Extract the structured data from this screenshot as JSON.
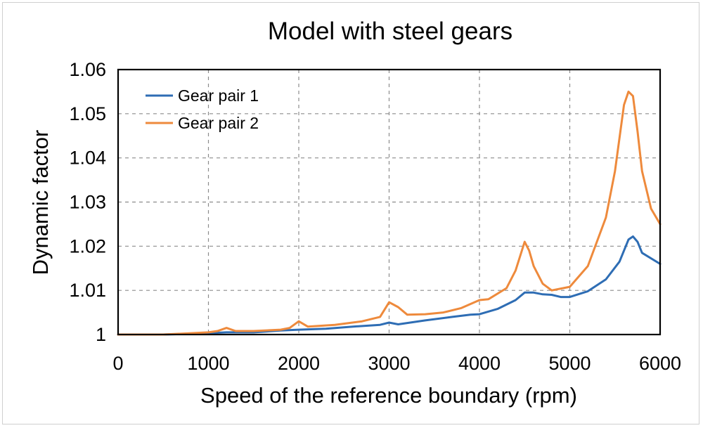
{
  "chart_data": {
    "type": "line",
    "title": "Model with steel gears",
    "xlabel": "Speed of the reference boundary (rpm)",
    "ylabel": "Dynamic factor",
    "xlim": [
      0,
      6000
    ],
    "ylim": [
      1.0,
      1.06
    ],
    "xticks": [
      "0",
      "1000",
      "2000",
      "3000",
      "4000",
      "5000",
      "6000"
    ],
    "yticks": [
      "1",
      "1.01",
      "1.02",
      "1.03",
      "1.04",
      "1.05",
      "1.06"
    ],
    "grid": true,
    "legend_position": "top-left",
    "series": [
      {
        "name": "Gear pair 1",
        "color": "#2e6db4",
        "x": [
          0,
          500,
          1000,
          1200,
          1500,
          1800,
          2000,
          2300,
          2600,
          2900,
          3000,
          3100,
          3400,
          3700,
          3900,
          4000,
          4200,
          4400,
          4500,
          4600,
          4700,
          4800,
          4900,
          5000,
          5200,
          5400,
          5550,
          5650,
          5700,
          5750,
          5800,
          6000
        ],
        "y": [
          1.0,
          1.0,
          1.0003,
          1.0005,
          1.0005,
          1.0009,
          1.0011,
          1.0013,
          1.0018,
          1.0022,
          1.0027,
          1.0023,
          1.0032,
          1.004,
          1.0045,
          1.0046,
          1.0058,
          1.0078,
          1.0095,
          1.0095,
          1.0091,
          1.009,
          1.0085,
          1.0085,
          1.0098,
          1.0125,
          1.0165,
          1.0215,
          1.0222,
          1.021,
          1.0185,
          1.016
        ]
      },
      {
        "name": "Gear pair 2",
        "color": "#ee8a3c",
        "x": [
          0,
          500,
          1000,
          1100,
          1200,
          1300,
          1500,
          1800,
          1900,
          2000,
          2100,
          2400,
          2700,
          2900,
          3000,
          3100,
          3200,
          3400,
          3600,
          3800,
          4000,
          4100,
          4300,
          4400,
          4500,
          4550,
          4600,
          4700,
          4800,
          5000,
          5200,
          5400,
          5500,
          5600,
          5650,
          5700,
          5750,
          5800,
          5900,
          6000
        ],
        "y": [
          1.0,
          1.0,
          1.0005,
          1.0008,
          1.0015,
          1.0008,
          1.0008,
          1.0011,
          1.0015,
          1.003,
          1.0018,
          1.0022,
          1.003,
          1.004,
          1.0073,
          1.0062,
          1.0045,
          1.0046,
          1.005,
          1.006,
          1.0078,
          1.008,
          1.0105,
          1.0145,
          1.021,
          1.019,
          1.0155,
          1.0115,
          1.01,
          1.0108,
          1.0155,
          1.0265,
          1.037,
          1.052,
          1.055,
          1.054,
          1.046,
          1.037,
          1.0285,
          1.025
        ]
      }
    ]
  }
}
